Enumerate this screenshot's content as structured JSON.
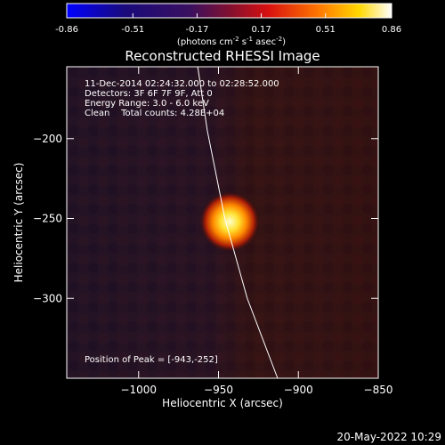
{
  "colorbar": {
    "ticks": [
      "-0.86",
      "-0.51",
      "-0.17",
      "0.17",
      "0.51",
      "0.86"
    ],
    "unit_label": "(photons cm",
    "unit_exp1": "-2",
    "unit_mid": " s",
    "unit_exp2": "-1",
    "unit_end": " asec",
    "unit_exp3": "-2",
    "unit_close": ")"
  },
  "chart_data": {
    "type": "heatmap",
    "title": "Reconstructed RHESSI Image",
    "xlabel": "Heliocentric X (arcsec)",
    "ylabel": "Heliocentric Y (arcsec)",
    "xlim": [
      -1045,
      -850
    ],
    "ylim": [
      -350,
      -155
    ],
    "xticks": [
      {
        "value": -1000,
        "label": "−1000"
      },
      {
        "value": -950,
        "label": "−950"
      },
      {
        "value": -900,
        "label": "−900"
      },
      {
        "value": -850,
        "label": "−850"
      }
    ],
    "yticks": [
      {
        "value": -200,
        "label": "−200"
      },
      {
        "value": -250,
        "label": "−250"
      },
      {
        "value": -300,
        "label": "−300"
      }
    ],
    "colorscale_range": [
      -0.86,
      0.86
    ],
    "peak": {
      "x": -943,
      "y": -252
    },
    "annotations": {
      "time": "11-Dec-2014 02:24:32.000 to 02:28:52.000",
      "detectors": "Detectors: 3F 6F 7F 9F, Att 0",
      "energy": "Energy Range: 3.0 - 6.0 keV",
      "clean": "Clean    Total counts: 4.28E+04",
      "peak_text": "Position of Peak = [-943,-252]"
    },
    "limb_line": [
      {
        "x": -963,
        "y": -155
      },
      {
        "x": -957,
        "y": -195
      },
      {
        "x": -946,
        "y": -250
      },
      {
        "x": -932,
        "y": -300
      },
      {
        "x": -913,
        "y": -350
      }
    ]
  },
  "footer_date": "20-May-2022 10:29"
}
